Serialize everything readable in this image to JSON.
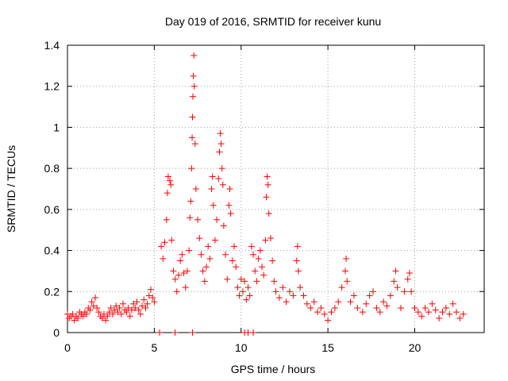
{
  "chart_data": {
    "type": "scatter",
    "title": "Day 019 of 2016, SRMTID for receiver kunu",
    "xlabel": "GPS time / hours",
    "ylabel": "SRMTID / TECUs",
    "xlim": [
      0,
      24
    ],
    "ylim": [
      0,
      1.4
    ],
    "x_ticks": [
      0,
      5,
      10,
      15,
      20
    ],
    "y_ticks": [
      0,
      0.2,
      0.4,
      0.6,
      0.8,
      1,
      1.2,
      1.4
    ],
    "y_tick_labels": [
      "0",
      "0.2",
      "0.4",
      "0.6",
      "0.8",
      "1",
      "1.2",
      "1.4"
    ],
    "grid": true,
    "marker": "plus",
    "color": "#ff0000",
    "series": [
      {
        "name": "SRMTID",
        "points": [
          [
            0.0,
            0.09
          ],
          [
            0.1,
            0.07
          ],
          [
            0.2,
            0.08
          ],
          [
            0.3,
            0.09
          ],
          [
            0.4,
            0.06
          ],
          [
            0.5,
            0.08
          ],
          [
            0.6,
            0.07
          ],
          [
            0.7,
            0.1
          ],
          [
            0.8,
            0.09
          ],
          [
            0.9,
            0.08
          ],
          [
            1.0,
            0.1
          ],
          [
            1.1,
            0.09
          ],
          [
            1.2,
            0.12
          ],
          [
            1.3,
            0.11
          ],
          [
            1.4,
            0.15
          ],
          [
            1.5,
            0.13
          ],
          [
            1.6,
            0.17
          ],
          [
            1.7,
            0.12
          ],
          [
            1.8,
            0.1
          ],
          [
            1.9,
            0.08
          ],
          [
            2.0,
            0.07
          ],
          [
            2.1,
            0.09
          ],
          [
            2.2,
            0.06
          ],
          [
            2.3,
            0.08
          ],
          [
            2.4,
            0.1
          ],
          [
            2.5,
            0.12
          ],
          [
            2.6,
            0.09
          ],
          [
            2.7,
            0.11
          ],
          [
            2.8,
            0.13
          ],
          [
            2.9,
            0.1
          ],
          [
            3.0,
            0.12
          ],
          [
            3.1,
            0.09
          ],
          [
            3.2,
            0.14
          ],
          [
            3.3,
            0.11
          ],
          [
            3.4,
            0.1
          ],
          [
            3.5,
            0.12
          ],
          [
            3.6,
            0.08
          ],
          [
            3.7,
            0.11
          ],
          [
            3.8,
            0.14
          ],
          [
            3.9,
            0.12
          ],
          [
            4.0,
            0.15
          ],
          [
            4.1,
            0.11
          ],
          [
            4.2,
            0.09
          ],
          [
            4.3,
            0.13
          ],
          [
            4.4,
            0.16
          ],
          [
            4.5,
            0.12
          ],
          [
            4.6,
            0.14
          ],
          [
            4.7,
            0.18
          ],
          [
            4.8,
            0.21
          ],
          [
            4.9,
            0.17
          ],
          [
            5.0,
            0.15
          ],
          [
            5.4,
            0.42
          ],
          [
            5.5,
            0.36
          ],
          [
            5.6,
            0.44
          ],
          [
            5.7,
            0.55
          ],
          [
            5.75,
            0.68
          ],
          [
            5.8,
            0.76
          ],
          [
            5.9,
            0.74
          ],
          [
            5.95,
            0.72
          ],
          [
            6.0,
            0.45
          ],
          [
            6.1,
            0.3
          ],
          [
            6.2,
            0.26
          ],
          [
            6.3,
            0.2
          ],
          [
            6.4,
            0.28
          ],
          [
            6.5,
            0.35
          ],
          [
            6.6,
            0.38
          ],
          [
            6.7,
            0.29
          ],
          [
            6.8,
            0.22
          ],
          [
            6.9,
            0.3
          ],
          [
            7.0,
            0.4
          ],
          [
            7.05,
            0.56
          ],
          [
            7.1,
            0.64
          ],
          [
            7.15,
            0.8
          ],
          [
            7.18,
            0.95
          ],
          [
            7.2,
            1.05
          ],
          [
            7.22,
            1.15
          ],
          [
            7.25,
            1.25
          ],
          [
            7.28,
            1.35
          ],
          [
            7.3,
            1.2
          ],
          [
            7.35,
            0.92
          ],
          [
            7.4,
            0.7
          ],
          [
            7.5,
            0.55
          ],
          [
            7.6,
            0.46
          ],
          [
            7.7,
            0.38
          ],
          [
            7.8,
            0.3
          ],
          [
            7.9,
            0.25
          ],
          [
            8.0,
            0.32
          ],
          [
            8.1,
            0.42
          ],
          [
            8.2,
            0.36
          ],
          [
            8.3,
            0.7
          ],
          [
            8.35,
            0.76
          ],
          [
            8.4,
            0.62
          ],
          [
            8.5,
            0.45
          ],
          [
            8.6,
            0.55
          ],
          [
            8.7,
            0.75
          ],
          [
            8.75,
            0.88
          ],
          [
            8.8,
            0.97
          ],
          [
            8.85,
            0.92
          ],
          [
            8.9,
            0.8
          ],
          [
            8.95,
            0.72
          ],
          [
            9.0,
            0.52
          ],
          [
            9.1,
            0.38
          ],
          [
            9.2,
            0.26
          ],
          [
            9.3,
            0.62
          ],
          [
            9.35,
            0.7
          ],
          [
            9.4,
            0.58
          ],
          [
            9.5,
            0.35
          ],
          [
            9.6,
            0.42
          ],
          [
            9.7,
            0.32
          ],
          [
            9.8,
            0.22
          ],
          [
            9.9,
            0.18
          ],
          [
            10.0,
            0.26
          ],
          [
            10.1,
            0.2
          ],
          [
            10.2,
            0.25
          ],
          [
            10.3,
            0.16
          ],
          [
            10.4,
            0.22
          ],
          [
            10.5,
            0.18
          ],
          [
            10.6,
            0.42
          ],
          [
            10.7,
            0.38
          ],
          [
            10.8,
            0.3
          ],
          [
            10.9,
            0.25
          ],
          [
            11.0,
            0.36
          ],
          [
            11.1,
            0.4
          ],
          [
            11.2,
            0.32
          ],
          [
            11.3,
            0.28
          ],
          [
            11.4,
            0.45
          ],
          [
            11.45,
            0.66
          ],
          [
            11.5,
            0.76
          ],
          [
            11.55,
            0.72
          ],
          [
            11.6,
            0.58
          ],
          [
            11.7,
            0.46
          ],
          [
            11.8,
            0.35
          ],
          [
            11.9,
            0.25
          ],
          [
            12.0,
            0.2
          ],
          [
            12.2,
            0.17
          ],
          [
            12.4,
            0.22
          ],
          [
            12.6,
            0.15
          ],
          [
            12.8,
            0.2
          ],
          [
            13.0,
            0.18
          ],
          [
            13.2,
            0.35
          ],
          [
            13.25,
            0.42
          ],
          [
            13.3,
            0.3
          ],
          [
            13.4,
            0.22
          ],
          [
            13.6,
            0.18
          ],
          [
            13.8,
            0.14
          ],
          [
            14.0,
            0.12
          ],
          [
            14.2,
            0.15
          ],
          [
            14.4,
            0.1
          ],
          [
            14.6,
            0.12
          ],
          [
            14.8,
            0.09
          ],
          [
            15.0,
            0.06
          ],
          [
            15.2,
            0.1
          ],
          [
            15.4,
            0.12
          ],
          [
            15.6,
            0.15
          ],
          [
            15.8,
            0.22
          ],
          [
            16.0,
            0.3
          ],
          [
            16.05,
            0.36
          ],
          [
            16.1,
            0.25
          ],
          [
            16.3,
            0.15
          ],
          [
            16.5,
            0.18
          ],
          [
            16.7,
            0.12
          ],
          [
            17.0,
            0.1
          ],
          [
            17.2,
            0.14
          ],
          [
            17.4,
            0.18
          ],
          [
            17.6,
            0.2
          ],
          [
            17.8,
            0.12
          ],
          [
            18.0,
            0.1
          ],
          [
            18.2,
            0.15
          ],
          [
            18.4,
            0.13
          ],
          [
            18.6,
            0.18
          ],
          [
            18.8,
            0.25
          ],
          [
            18.9,
            0.3
          ],
          [
            19.0,
            0.22
          ],
          [
            19.2,
            0.12
          ],
          [
            19.4,
            0.2
          ],
          [
            19.6,
            0.26
          ],
          [
            19.7,
            0.29
          ],
          [
            19.8,
            0.2
          ],
          [
            20.0,
            0.12
          ],
          [
            20.2,
            0.1
          ],
          [
            20.4,
            0.08
          ],
          [
            20.6,
            0.12
          ],
          [
            20.8,
            0.1
          ],
          [
            21.0,
            0.14
          ],
          [
            21.2,
            0.11
          ],
          [
            21.4,
            0.07
          ],
          [
            21.6,
            0.1
          ],
          [
            21.8,
            0.12
          ],
          [
            22.0,
            0.09
          ],
          [
            22.2,
            0.14
          ],
          [
            22.4,
            0.1
          ],
          [
            22.6,
            0.07
          ],
          [
            22.8,
            0.09
          ],
          [
            5.3,
            0.0
          ],
          [
            6.2,
            0.0
          ],
          [
            7.2,
            0.0
          ],
          [
            10.2,
            0.0
          ],
          [
            10.4,
            0.0
          ],
          [
            10.7,
            0.0
          ]
        ]
      }
    ]
  }
}
